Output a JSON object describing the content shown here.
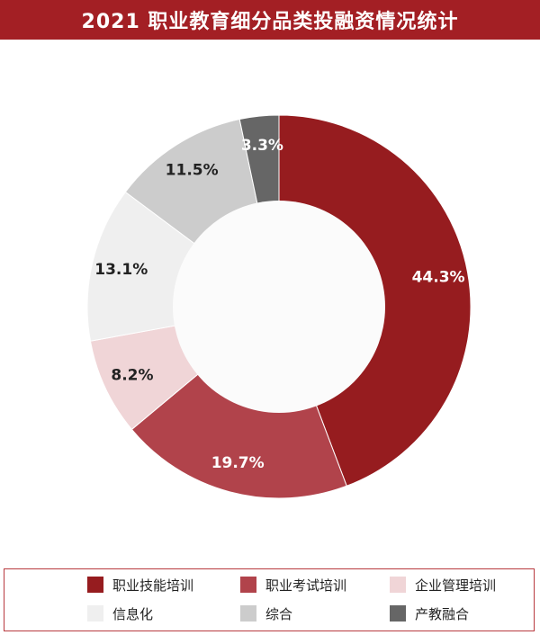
{
  "header": {
    "title": "2021 职业教育细分品类投融资情况统计"
  },
  "chart_data": {
    "type": "pie",
    "donut": true,
    "title": "2021 职业教育细分品类投融资情况统计",
    "legend_position": "bottom",
    "slices": [
      {
        "label": "职业技能培训",
        "value": 44.3,
        "display": "44.3%",
        "color": "#961c1f",
        "text_color": "#ffffff"
      },
      {
        "label": "职业考试培训",
        "value": 19.7,
        "display": "19.7%",
        "color": "#b1434b",
        "text_color": "#ffffff"
      },
      {
        "label": "企业管理培训",
        "value": 8.2,
        "display": "8.2%",
        "color": "#f0d5d7",
        "text_color": "#222222"
      },
      {
        "label": "信息化",
        "value": 13.1,
        "display": "13.1%",
        "color": "#efefef",
        "text_color": "#222222"
      },
      {
        "label": "综合",
        "value": 11.5,
        "display": "11.5%",
        "color": "#cccccc",
        "text_color": "#222222"
      },
      {
        "label": "产教融合",
        "value": 3.3,
        "display": "3.3%",
        "color": "#666666",
        "text_color": "#ffffff"
      }
    ]
  }
}
